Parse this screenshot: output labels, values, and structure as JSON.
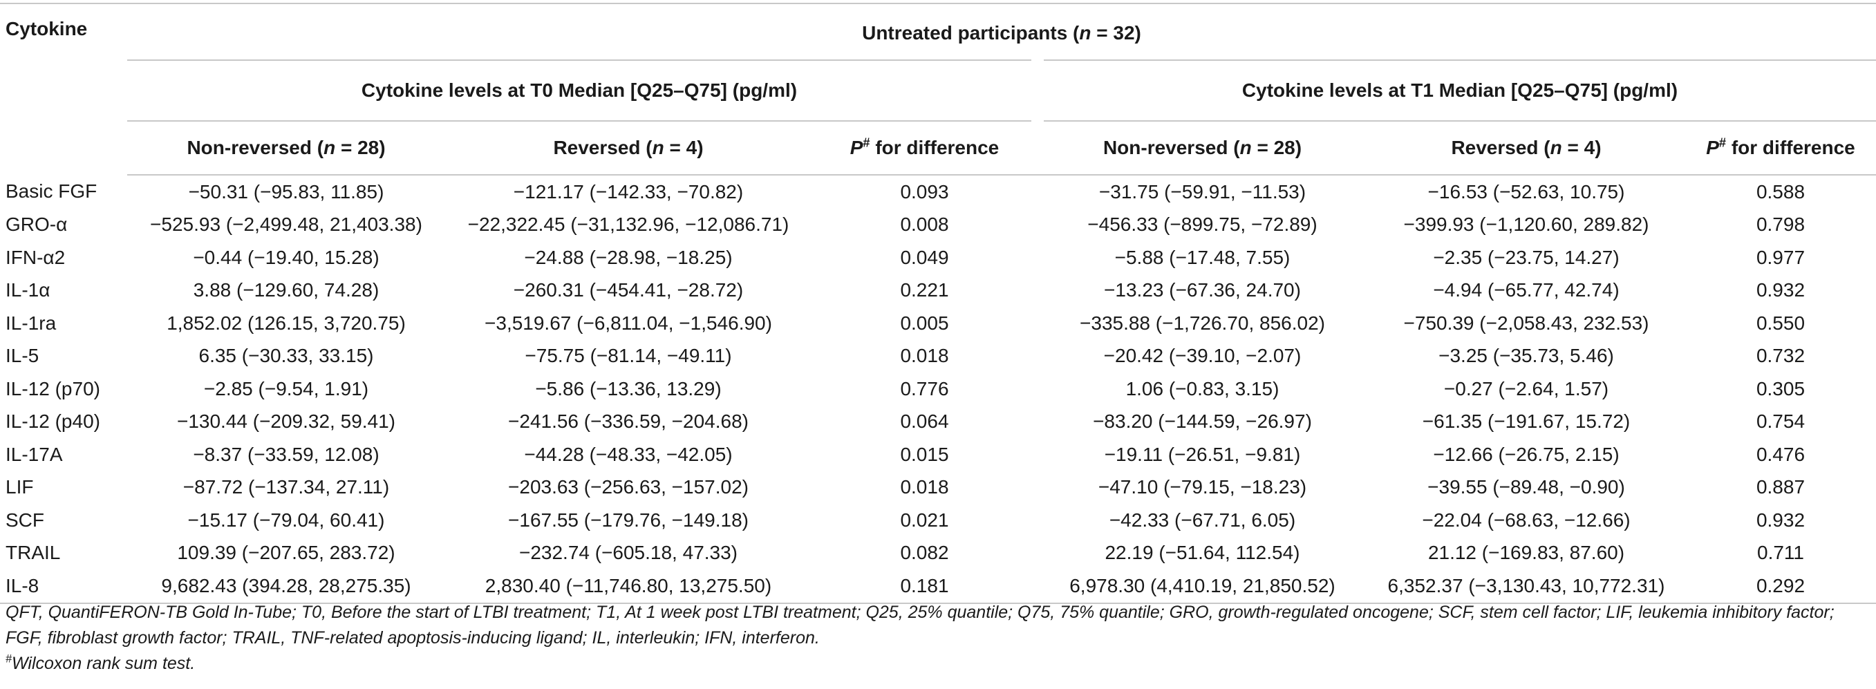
{
  "header": {
    "stub_label": "Cytokine",
    "group_label_prefix": "Untreated participants (",
    "group_label_n": "n",
    "group_label_suffix": " = 32)",
    "t0_label": "Cytokine levels at T0 Median [Q25–Q75] (pg/ml)",
    "t1_label": "Cytokine levels at T1 Median [Q25–Q75] (pg/ml)",
    "nonrev_prefix": "Non-reversed (",
    "nonrev_n": "n",
    "nonrev_suffix": " = 28)",
    "rev_prefix": "Reversed (",
    "rev_n": "n",
    "rev_suffix": " = 4)",
    "p_letter": "P",
    "p_sup": "#",
    "p_suffix": " for difference"
  },
  "rows": [
    {
      "name": "Basic FGF",
      "t0_nonrev": "−50.31 (−95.83, 11.85)",
      "t0_rev": "−121.17 (−142.33, −70.82)",
      "t0_p": "0.093",
      "t1_nonrev": "−31.75 (−59.91, −11.53)",
      "t1_rev": "−16.53 (−52.63, 10.75)",
      "t1_p": "0.588"
    },
    {
      "name": "GRO-α",
      "t0_nonrev": "−525.93 (−2,499.48, 21,403.38)",
      "t0_rev": "−22,322.45 (−31,132.96, −12,086.71)",
      "t0_p": "0.008",
      "t1_nonrev": "−456.33 (−899.75, −72.89)",
      "t1_rev": "−399.93 (−1,120.60, 289.82)",
      "t1_p": "0.798"
    },
    {
      "name": "IFN-α2",
      "t0_nonrev": "−0.44 (−19.40, 15.28)",
      "t0_rev": "−24.88 (−28.98, −18.25)",
      "t0_p": "0.049",
      "t1_nonrev": "−5.88 (−17.48, 7.55)",
      "t1_rev": "−2.35 (−23.75, 14.27)",
      "t1_p": "0.977"
    },
    {
      "name": "IL-1α",
      "t0_nonrev": "3.88 (−129.60, 74.28)",
      "t0_rev": "−260.31 (−454.41, −28.72)",
      "t0_p": "0.221",
      "t1_nonrev": "−13.23 (−67.36, 24.70)",
      "t1_rev": "−4.94 (−65.77, 42.74)",
      "t1_p": "0.932"
    },
    {
      "name": "IL-1ra",
      "t0_nonrev": "1,852.02 (126.15, 3,720.75)",
      "t0_rev": "−3,519.67 (−6,811.04, −1,546.90)",
      "t0_p": "0.005",
      "t1_nonrev": "−335.88 (−1,726.70, 856.02)",
      "t1_rev": "−750.39 (−2,058.43, 232.53)",
      "t1_p": "0.550"
    },
    {
      "name": "IL-5",
      "t0_nonrev": "6.35 (−30.33, 33.15)",
      "t0_rev": "−75.75 (−81.14, −49.11)",
      "t0_p": "0.018",
      "t1_nonrev": "−20.42 (−39.10, −2.07)",
      "t1_rev": "−3.25 (−35.73, 5.46)",
      "t1_p": "0.732"
    },
    {
      "name": "IL-12 (p70)",
      "t0_nonrev": "−2.85 (−9.54, 1.91)",
      "t0_rev": "−5.86 (−13.36, 13.29)",
      "t0_p": "0.776",
      "t1_nonrev": "1.06 (−0.83, 3.15)",
      "t1_rev": "−0.27 (−2.64, 1.57)",
      "t1_p": "0.305"
    },
    {
      "name": "IL-12 (p40)",
      "t0_nonrev": "−130.44 (−209.32, 59.41)",
      "t0_rev": "−241.56 (−336.59, −204.68)",
      "t0_p": "0.064",
      "t1_nonrev": "−83.20 (−144.59, −26.97)",
      "t1_rev": "−61.35 (−191.67, 15.72)",
      "t1_p": "0.754"
    },
    {
      "name": "IL-17A",
      "t0_nonrev": "−8.37 (−33.59, 12.08)",
      "t0_rev": "−44.28 (−48.33, −42.05)",
      "t0_p": "0.015",
      "t1_nonrev": "−19.11 (−26.51, −9.81)",
      "t1_rev": "−12.66 (−26.75, 2.15)",
      "t1_p": "0.476"
    },
    {
      "name": "LIF",
      "t0_nonrev": "−87.72 (−137.34, 27.11)",
      "t0_rev": "−203.63 (−256.63, −157.02)",
      "t0_p": "0.018",
      "t1_nonrev": "−47.10 (−79.15, −18.23)",
      "t1_rev": "−39.55 (−89.48, −0.90)",
      "t1_p": "0.887"
    },
    {
      "name": "SCF",
      "t0_nonrev": "−15.17 (−79.04, 60.41)",
      "t0_rev": "−167.55 (−179.76, −149.18)",
      "t0_p": "0.021",
      "t1_nonrev": "−42.33 (−67.71, 6.05)",
      "t1_rev": "−22.04 (−68.63, −12.66)",
      "t1_p": "0.932"
    },
    {
      "name": "TRAIL",
      "t0_nonrev": "109.39 (−207.65, 283.72)",
      "t0_rev": "−232.74 (−605.18, 47.33)",
      "t0_p": "0.082",
      "t1_nonrev": "22.19 (−51.64, 112.54)",
      "t1_rev": "21.12 (−169.83, 87.60)",
      "t1_p": "0.711"
    },
    {
      "name": "IL-8",
      "t0_nonrev": "9,682.43 (394.28, 28,275.35)",
      "t0_rev": "2,830.40 (−11,746.80, 13,275.50)",
      "t0_p": "0.181",
      "t1_nonrev": "6,978.30 (4,410.19, 21,850.52)",
      "t1_rev": "6,352.37 (−3,130.43, 10,772.31)",
      "t1_p": "0.292"
    }
  ],
  "notes": {
    "abbreviations": "QFT, QuantiFERON-TB Gold In-Tube; T0, Before the start of LTBI treatment; T1, At 1 week post LTBI treatment; Q25, 25% quantile; Q75, 75% quantile; GRO, growth-regulated oncogene; SCF, stem cell factor; LIF, leukemia inhibitory factor; FGF, fibroblast growth factor; TRAIL, TNF-related apoptosis-inducing ligand; IL, interleukin; IFN, interferon.",
    "footnote_mark": "#",
    "footnote_text": "Wilcoxon rank sum test."
  }
}
